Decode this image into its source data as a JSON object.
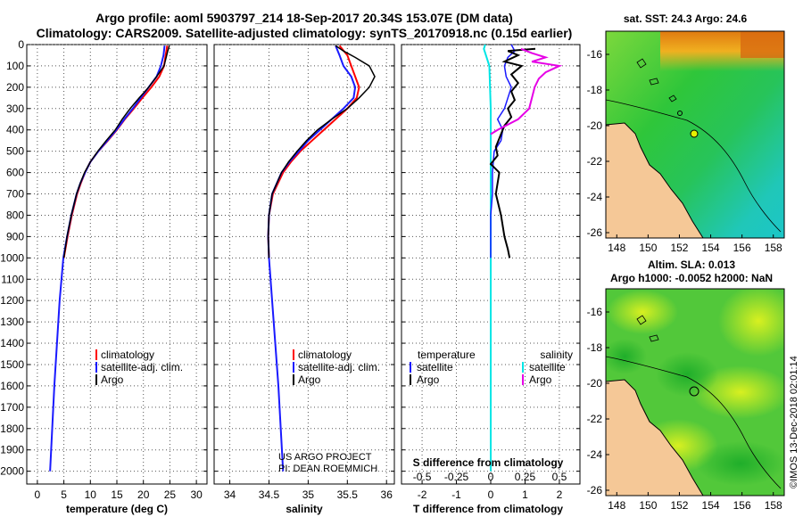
{
  "header": {
    "line1": "Argo profile: aoml 5903797_214 18-Sep-2017 20.34S 153.07E (DM data)",
    "line2": "Climatology: CARS2009. Satellite-adjusted climatology: synTS_20170918.nc (0.15d earlier)"
  },
  "colors": {
    "climatology": "#ff0000",
    "satellite": "#1a1aff",
    "argo": "#000000",
    "sat_salinity": "#00e5e5",
    "argo_salinity": "#e600e6",
    "land": "#f5c897"
  },
  "depth_axis": {
    "ticks": [
      "0",
      "100",
      "200",
      "300",
      "400",
      "500",
      "600",
      "700",
      "800",
      "900",
      "1000",
      "1100",
      "1200",
      "1300",
      "1400",
      "1500",
      "1600",
      "1700",
      "1800",
      "1900",
      "2000"
    ],
    "min": 0,
    "max": 2060
  },
  "chart_data": [
    {
      "type": "line",
      "panel": "temperature",
      "xlabel": "temperature (deg C)",
      "xlim": [
        -2,
        32
      ],
      "xticks": [
        "0",
        "5",
        "10",
        "15",
        "20",
        "25",
        "30"
      ],
      "xtick_values": [
        0,
        5,
        10,
        15,
        20,
        25,
        30
      ],
      "legend": {
        "placement": "lower-middle",
        "entries": [
          "climatology",
          "satellite-adj. clim.",
          "Argo"
        ]
      },
      "series": [
        {
          "name": "climatology",
          "color": "#ff0000",
          "depth": [
            5,
            50,
            100,
            150,
            200,
            250,
            300,
            350,
            400,
            450,
            500,
            550,
            600,
            650,
            700,
            800,
            900,
            1000
          ],
          "values": [
            24.5,
            24.2,
            23.9,
            23.0,
            21.5,
            19.8,
            18.2,
            16.5,
            15.0,
            13.3,
            11.5,
            10.0,
            9.0,
            8.2,
            7.5,
            6.5,
            5.7,
            5.0
          ]
        },
        {
          "name": "satellite-adj. clim.",
          "color": "#1a1aff",
          "depth": [
            5,
            50,
            100,
            150,
            200,
            250,
            300,
            350,
            400,
            450,
            500,
            550,
            600,
            650,
            700,
            800,
            900,
            1000,
            1200,
            1400,
            1600,
            1800,
            2000
          ],
          "values": [
            24.0,
            23.8,
            23.3,
            22.5,
            21.0,
            19.5,
            18.0,
            16.4,
            14.9,
            13.2,
            11.5,
            10.0,
            9.0,
            8.1,
            7.4,
            6.4,
            5.6,
            4.9,
            4.2,
            3.7,
            3.2,
            2.8,
            2.4
          ]
        },
        {
          "name": "Argo",
          "color": "#000000",
          "depth": [
            5,
            30,
            60,
            100,
            150,
            200,
            250,
            300,
            350,
            400,
            450,
            500,
            550,
            600,
            650,
            700,
            800,
            900,
            1000
          ],
          "values": [
            24.9,
            24.6,
            24.3,
            23.9,
            22.5,
            21.0,
            19.2,
            17.5,
            16.0,
            14.7,
            13.0,
            11.4,
            10.0,
            8.9,
            8.1,
            7.4,
            6.4,
            5.6,
            5.0
          ]
        }
      ]
    },
    {
      "type": "line",
      "panel": "salinity",
      "xlabel": "salinity",
      "xlim": [
        33.8,
        36.1
      ],
      "xticks": [
        "34",
        "34.5",
        "35",
        "35.5",
        "36"
      ],
      "xtick_values": [
        34,
        34.5,
        35,
        35.5,
        36
      ],
      "legend": {
        "placement": "lower-middle",
        "entries": [
          "climatology",
          "satellite-adj. clim.",
          "Argo"
        ]
      },
      "annotation": [
        "US ARGO PROJECT",
        "PI: DEAN ROEMMICH"
      ],
      "series": [
        {
          "name": "climatology",
          "color": "#ff0000",
          "depth": [
            5,
            50,
            100,
            150,
            200,
            250,
            300,
            350,
            400,
            450,
            500,
            550,
            600,
            700,
            800,
            900,
            1000
          ],
          "values": [
            35.4,
            35.5,
            35.55,
            35.6,
            35.65,
            35.62,
            35.5,
            35.35,
            35.2,
            35.05,
            34.9,
            34.78,
            34.68,
            34.55,
            34.5,
            34.49,
            34.5
          ]
        },
        {
          "name": "satellite-adj. clim.",
          "color": "#1a1aff",
          "depth": [
            5,
            50,
            100,
            150,
            200,
            250,
            300,
            350,
            400,
            450,
            500,
            550,
            600,
            700,
            800,
            900,
            1000,
            1200,
            1400,
            1600,
            1800,
            2000
          ],
          "values": [
            35.35,
            35.4,
            35.45,
            35.55,
            35.6,
            35.58,
            35.45,
            35.3,
            35.15,
            35.0,
            34.88,
            34.76,
            34.66,
            34.54,
            34.5,
            34.49,
            34.5,
            34.54,
            34.58,
            34.62,
            34.65,
            34.68
          ]
        },
        {
          "name": "Argo",
          "color": "#000000",
          "depth": [
            5,
            30,
            60,
            100,
            150,
            200,
            250,
            300,
            350,
            400,
            450,
            500,
            550,
            600,
            700,
            800,
            900,
            1000
          ],
          "values": [
            35.35,
            35.45,
            35.6,
            35.78,
            35.85,
            35.78,
            35.65,
            35.5,
            35.3,
            35.12,
            34.98,
            34.86,
            34.75,
            34.66,
            34.54,
            34.5,
            34.49,
            34.5
          ]
        }
      ]
    },
    {
      "type": "line",
      "panel": "difference",
      "xlabel": "T difference from climatology",
      "xlim": [
        -2.6,
        2.6
      ],
      "xticks": [
        "-2",
        "-1",
        "0",
        "1",
        "2"
      ],
      "xtick_values": [
        -2,
        -1,
        0,
        1,
        2
      ],
      "top_axis_label": "S difference from climatology",
      "top_axis_ticks": [
        "-0.5",
        "-0.25",
        "0",
        "0.25",
        "0.5"
      ],
      "legend": {
        "placement": "lower",
        "temperature_title": "temperature",
        "salinity_title": "salinity",
        "temperature_entries": [
          "satellite",
          "Argo"
        ],
        "salinity_entries": [
          "satellite",
          "Argo"
        ]
      },
      "series": [
        {
          "name": "temperature satellite",
          "color": "#1a1aff",
          "depth": [
            0,
            30,
            60,
            100,
            150,
            200,
            250,
            300,
            350,
            400,
            450,
            500,
            600,
            700,
            800,
            900,
            1000
          ],
          "values": [
            0.6,
            0.7,
            0.5,
            0.4,
            0.45,
            0.6,
            0.5,
            0.4,
            0.2,
            0.35,
            0.3,
            0.1,
            0.05,
            0.05,
            0.0,
            0.0,
            0.0
          ]
        },
        {
          "name": "temperature Argo",
          "color": "#000000",
          "depth": [
            20,
            30,
            50,
            80,
            100,
            140,
            180,
            220,
            260,
            300,
            340,
            380,
            420,
            480,
            520,
            560,
            600,
            700,
            800,
            900,
            960,
            1000
          ],
          "values": [
            1.3,
            0.5,
            0.8,
            0.4,
            0.9,
            0.6,
            0.8,
            0.6,
            0.7,
            0.5,
            0.6,
            0.4,
            0.3,
            0.15,
            0.2,
            0.0,
            0.25,
            0.15,
            0.3,
            0.4,
            0.5,
            0.55
          ]
        },
        {
          "name": "salinity satellite",
          "color": "#00e5e5",
          "depth": [
            0,
            20,
            60,
            100,
            200,
            300,
            400,
            500,
            700,
            1000,
            1300,
            1600,
            1900,
            2000
          ],
          "values": [
            -0.04,
            -0.05,
            -0.03,
            -0.01,
            -0.005,
            0.0,
            0.0,
            0.0,
            0.0,
            0.0,
            0.0,
            0.0,
            0.0,
            0.0
          ]
        },
        {
          "name": "salinity Argo",
          "color": "#e600e6",
          "depth": [
            20,
            40,
            60,
            80,
            100,
            130,
            160,
            200,
            250,
            300,
            350,
            400,
            420
          ],
          "values": [
            0.22,
            0.3,
            0.4,
            0.3,
            0.5,
            0.4,
            0.35,
            0.32,
            0.3,
            0.28,
            0.2,
            0.05,
            0.0
          ]
        }
      ]
    }
  ],
  "map_sst": {
    "title": "sat. SST: 24.3 Argo: 24.6",
    "yticks": [
      "-16",
      "-18",
      "-20",
      "-22",
      "-24",
      "-26"
    ],
    "ytick_values": [
      -16,
      -18,
      -20,
      -22,
      -24,
      -26
    ],
    "xticks": [
      "148",
      "150",
      "152",
      "154",
      "156",
      "158"
    ],
    "xtick_values": [
      148,
      150,
      152,
      154,
      156,
      158
    ],
    "lon_range": [
      147.3,
      158.7
    ],
    "lat_range": [
      -26.3,
      -14.7
    ],
    "argo_position": {
      "lon": 153.07,
      "lat": -20.34
    }
  },
  "map_sla": {
    "title_line1": "Altim. SLA: 0.013",
    "title_line2": "Argo h1000: -0.0052 h2000: NaN",
    "yticks": [
      "-16",
      "-18",
      "-20",
      "-22",
      "-24",
      "-26"
    ],
    "ytick_values": [
      -16,
      -18,
      -20,
      -22,
      -24,
      -26
    ],
    "xticks": [
      "148",
      "150",
      "152",
      "154",
      "156",
      "158"
    ],
    "xtick_values": [
      148,
      150,
      152,
      154,
      156,
      158
    ],
    "lon_range": [
      147.3,
      158.7
    ],
    "lat_range": [
      -26.3,
      -14.7
    ],
    "argo_position": {
      "lon": 153.07,
      "lat": -20.34
    }
  },
  "footer": {
    "credit": "©IMOS 13-Dec-2018 02:01:14"
  }
}
